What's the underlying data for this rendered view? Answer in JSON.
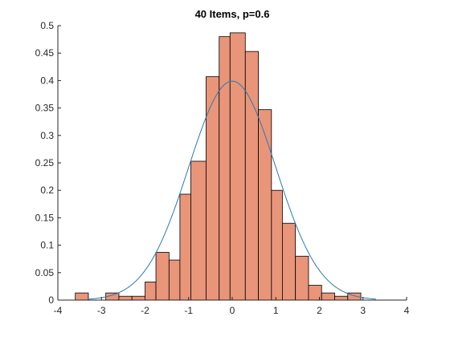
{
  "chart_data": {
    "type": "bar",
    "title": "40 Items, p=0.6",
    "xlabel": "",
    "ylabel": "",
    "xlim": [
      -4,
      4
    ],
    "ylim": [
      0,
      0.5
    ],
    "x_ticks": [
      "-4",
      "-3",
      "-2",
      "-1",
      "0",
      "1",
      "2",
      "3",
      "4"
    ],
    "y_ticks": [
      "0",
      "0.05",
      "0.1",
      "0.15",
      "0.2",
      "0.25",
      "0.3",
      "0.35",
      "0.4",
      "0.45",
      "0.5"
    ],
    "grid": false,
    "legend": "none",
    "bar_color": "#e8957a",
    "bar_edge_color": "#000000",
    "curve_color": "#2a7ab0",
    "bin_edges": [
      -3.6,
      -3.3,
      -2.9,
      -2.6,
      -2.3,
      -2.0,
      -1.75,
      -1.45,
      -1.2,
      -0.95,
      -0.6,
      -0.3,
      -0.05,
      0.3,
      0.6,
      0.9,
      1.15,
      1.45,
      1.75,
      2.05,
      2.35,
      2.65,
      2.95
    ],
    "values": [
      0.013,
      0.0,
      0.013,
      0.007,
      0.007,
      0.033,
      0.087,
      0.073,
      0.193,
      0.253,
      0.407,
      0.48,
      0.487,
      0.453,
      0.347,
      0.2,
      0.14,
      0.08,
      0.027,
      0.013,
      0.007,
      0.013
    ],
    "curve": {
      "type": "normal_pdf",
      "mean": 0,
      "sd": 1,
      "x_range": [
        -3.3,
        3.3
      ]
    }
  }
}
